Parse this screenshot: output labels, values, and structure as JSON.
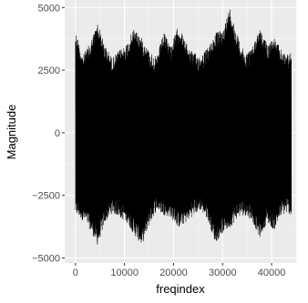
{
  "chart_data": {
    "type": "line",
    "title": "",
    "xlabel": "freqindex",
    "ylabel": "Magnitude",
    "xlim": [
      -2200,
      45000
    ],
    "ylim": [
      -5200,
      5300
    ],
    "x_ticks": [
      0,
      10000,
      20000,
      30000,
      40000
    ],
    "y_ticks": [
      -5000,
      -2500,
      0,
      2500,
      5000
    ],
    "x_tick_labels": [
      "0",
      "10000",
      "20000",
      "30000",
      "40000"
    ],
    "y_tick_labels": [
      "−5000",
      "−2500",
      "0",
      "2500",
      "5000"
    ],
    "grid": true,
    "legend": "none",
    "series": [
      {
        "x_start": 0,
        "x_end": 44000,
        "upper_envelope": {
          "x": [
            0,
            1500,
            3000,
            4500,
            6000,
            7500,
            9000,
            10500,
            12000,
            13500,
            15000,
            16500,
            18000,
            19500,
            21000,
            22500,
            24000,
            25500,
            27000,
            28500,
            30000,
            31500,
            33000,
            34500,
            36000,
            37500,
            39000,
            40500,
            42000,
            43500,
            44000
          ],
          "y": [
            4100,
            3100,
            3600,
            4400,
            3500,
            3000,
            3300,
            3600,
            4200,
            3800,
            3300,
            3000,
            4000,
            3500,
            4300,
            3600,
            3200,
            3100,
            3400,
            4000,
            4100,
            5000,
            3900,
            3200,
            3400,
            4200,
            3600,
            3800,
            3300,
            3100,
            3300
          ]
        },
        "lower_envelope": {
          "x": [
            0,
            1500,
            3000,
            4500,
            6000,
            7500,
            9000,
            10500,
            12000,
            13500,
            15000,
            16500,
            18000,
            19500,
            21000,
            22500,
            24000,
            25500,
            27000,
            28500,
            30000,
            31500,
            33000,
            34500,
            36000,
            37500,
            39000,
            40500,
            42000,
            43500,
            44000
          ],
          "y": [
            -3300,
            -3500,
            -3900,
            -4500,
            -3600,
            -3200,
            -3400,
            -3600,
            -4100,
            -4500,
            -3700,
            -3100,
            -3300,
            -3400,
            -3800,
            -3600,
            -3300,
            -3100,
            -3500,
            -4400,
            -4000,
            -3800,
            -3400,
            -3300,
            -3500,
            -4200,
            -3600,
            -3900,
            -3300,
            -3200,
            -3400
          ]
        }
      }
    ]
  }
}
